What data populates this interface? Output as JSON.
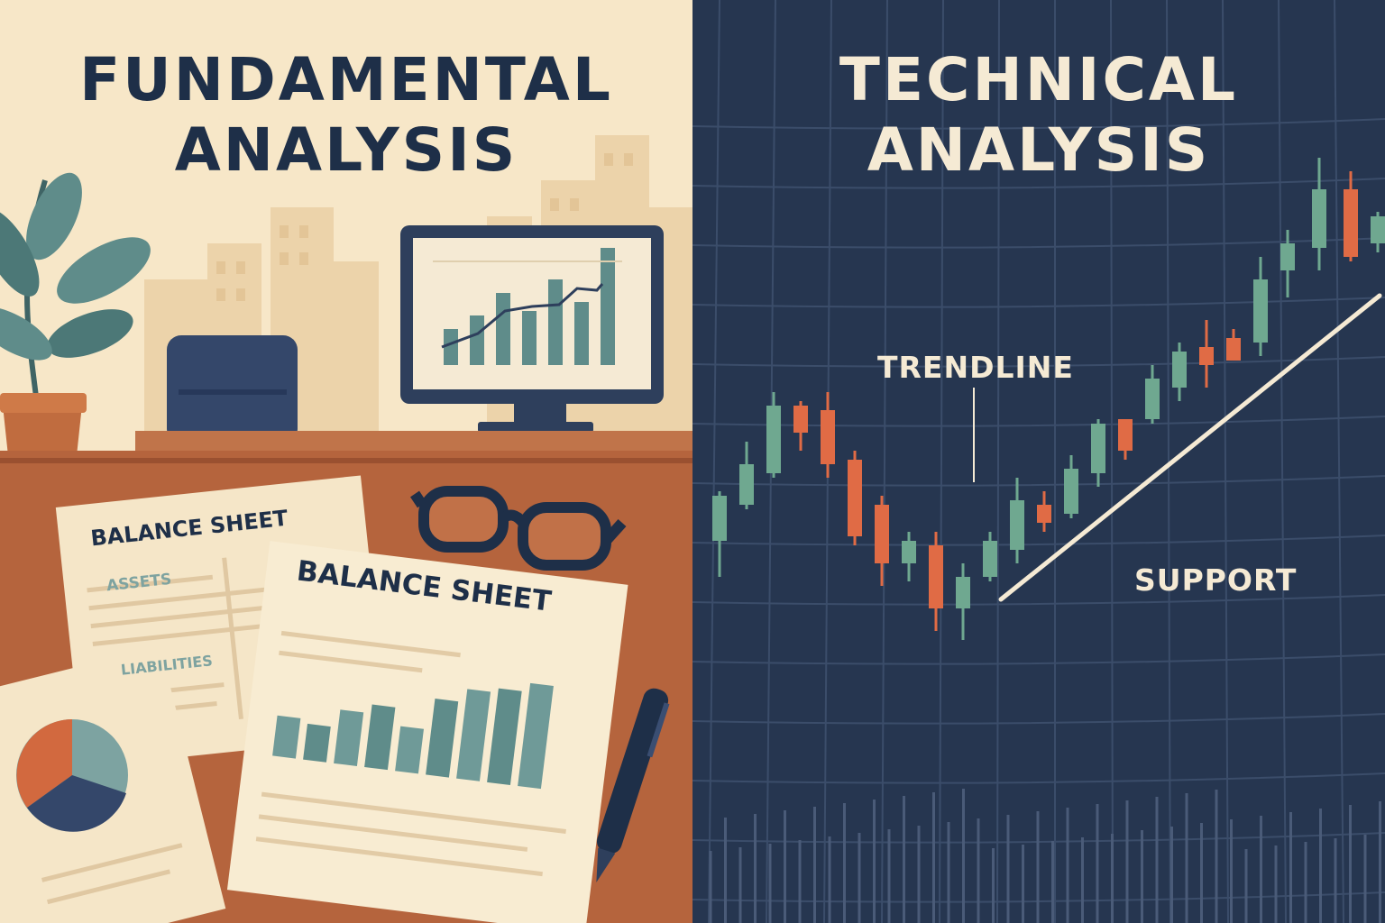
{
  "left_panel": {
    "title_line1": "FUNDAMENTAL",
    "title_line2": "ANALYSIS",
    "sheet_back": {
      "heading": "BALANCE SHEET",
      "row_assets": "ASSETS",
      "row_liabilities": "LIABILITIES"
    },
    "sheet_front": {
      "heading": "BALANCE SHEET"
    },
    "colors": {
      "background": "#f7e7c8",
      "desk": "#b5643d",
      "navy": "#1e2f48",
      "teal": "#5f8c8a",
      "orange": "#d2693f"
    }
  },
  "right_panel": {
    "title_line1": "TECHNICAL",
    "title_line2": "ANALYSIS",
    "label_trendline": "TRENDLINE",
    "label_support": "SUPPORT",
    "colors": {
      "background": "#263650",
      "bullish": "#6fa890",
      "bearish": "#e06b45",
      "text": "#f5ead4"
    }
  }
}
